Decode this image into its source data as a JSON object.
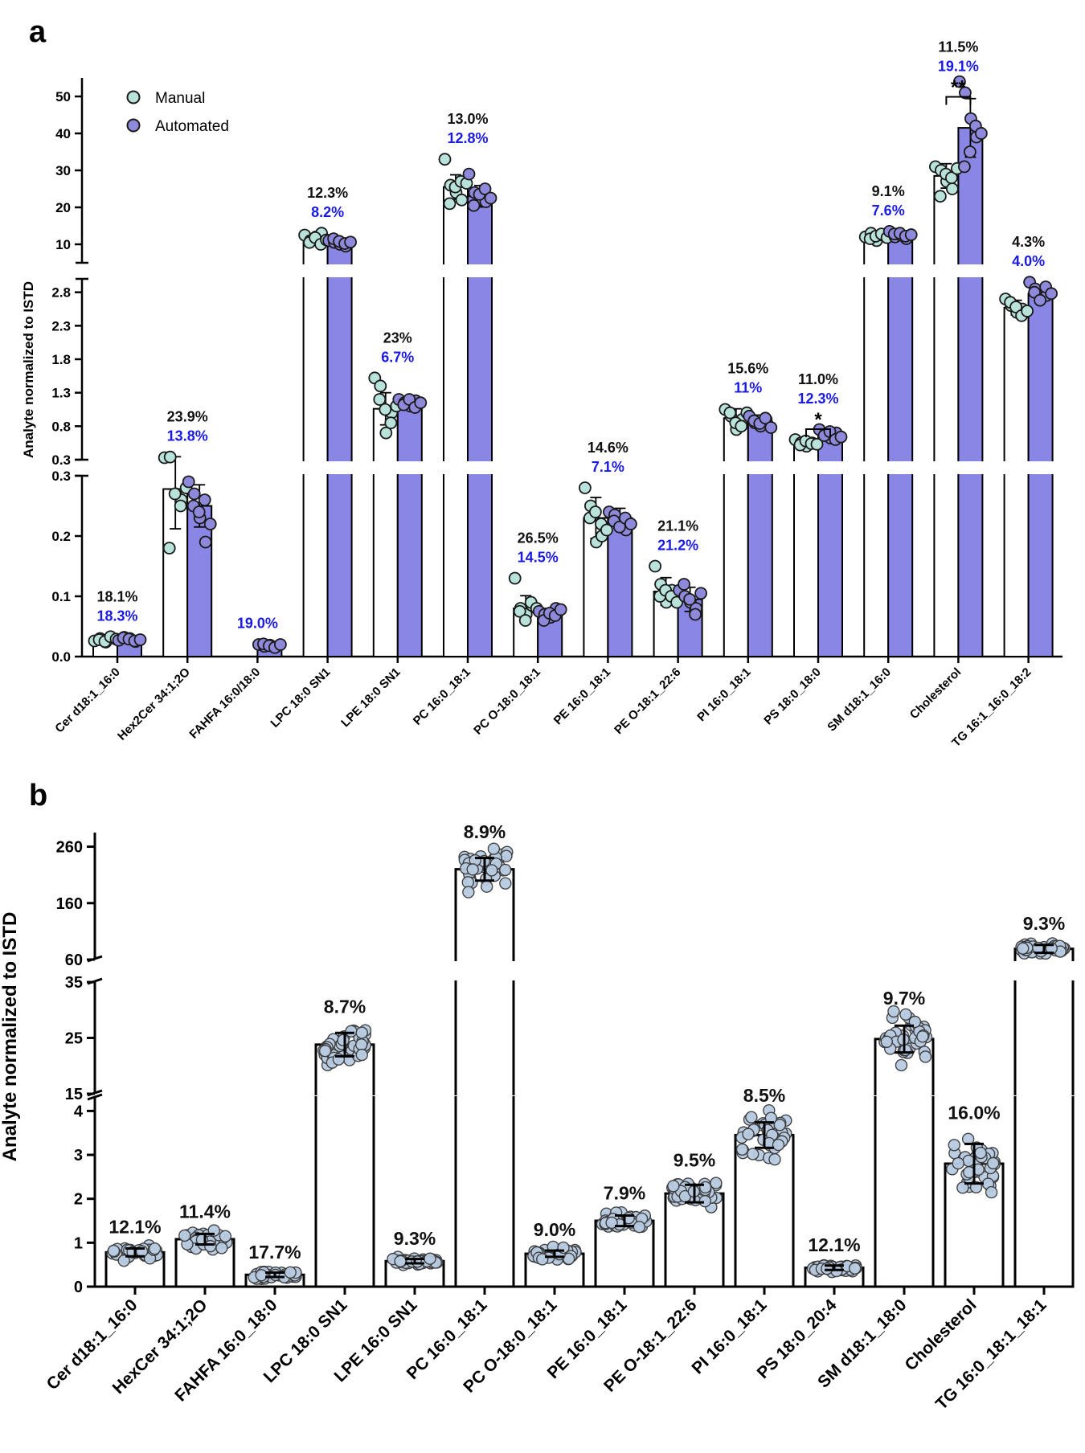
{
  "colors": {
    "manual_point": "#b9e3da",
    "automated_point": "#8f89dc",
    "automated_bar": "#8a86e6",
    "panel_b_point": "#b9cce2",
    "cv_manual": "#111111",
    "cv_automated": "#1a1ae6"
  },
  "chart_data": [
    {
      "panel": "a",
      "type": "bar",
      "ylabel": "Analyte normalized to ISTD",
      "legend": {
        "placement": "top-left",
        "entries": [
          "Manual",
          "Automated"
        ]
      },
      "categories": [
        "Cer d18:1_16:0",
        "Hex2Cer 34:1;2O",
        "FAHFA 16:0/18:0",
        "LPC 18:0 SN1",
        "LPE 18:0 SN1",
        "PC 16:0_18:1",
        "PC O-18:0_18:1",
        "PE 16:0_18:1",
        "PE O-18:1_22:6",
        "PI 16:0_18:1",
        "PS 18:0_18:0",
        "SM d18:1_16:0",
        "Cholesterol",
        "TG 16:1_16:0_18:2"
      ],
      "segments": [
        {
          "range": [
            0,
            0.3
          ],
          "ticks": [
            {
              "v": 0,
              "label": "0.0"
            },
            {
              "v": 0.1,
              "label": "0.1"
            },
            {
              "v": 0.2,
              "label": "0.2"
            },
            {
              "v": 0.3,
              "label": "0.3"
            }
          ]
        },
        {
          "range": [
            0.3,
            3.0
          ],
          "ticks": [
            {
              "v": 0.3,
              "label": "0.3"
            },
            {
              "v": 0.8,
              "label": "0.8"
            },
            {
              "v": 1.3,
              "label": "1.3"
            },
            {
              "v": 1.8,
              "label": "1.8"
            },
            {
              "v": 2.3,
              "label": "2.3"
            },
            {
              "v": 2.8,
              "label": "2.8"
            }
          ]
        },
        {
          "range": [
            5,
            55
          ],
          "ticks": [
            {
              "v": 10,
              "label": "10"
            },
            {
              "v": 20,
              "label": "20"
            },
            {
              "v": 30,
              "label": "30"
            },
            {
              "v": 40,
              "label": "40"
            },
            {
              "v": 50,
              "label": "50"
            }
          ]
        }
      ],
      "series": [
        {
          "name": "Manual",
          "values": [
            0.028,
            0.278,
            null,
            11.5,
            1.06,
            25.5,
            0.08,
            0.23,
            0.108,
            0.92,
            0.545,
            12.0,
            28.5,
            2.57
          ],
          "sd": [
            0.005,
            0.066,
            null,
            1.4,
            0.24,
            3.3,
            0.021,
            0.034,
            0.023,
            0.14,
            0.06,
            1.1,
            3.3,
            0.11
          ],
          "points": [
            [
              0.026,
              0.03,
              0.024,
              0.031,
              0.028,
              0.025,
              0.033,
              0.029
            ],
            [
              0.33,
              0.34,
              0.27,
              0.26,
              0.18,
              0.27,
              0.25,
              0.28
            ],
            [],
            [
              12.5,
              11.0,
              12.0,
              13.0,
              10.5,
              11.8,
              10.0,
              11.2
            ],
            [
              1.52,
              1.4,
              0.7,
              1.0,
              1.2,
              1.05,
              0.85,
              1.1
            ],
            [
              33.0,
              26.0,
              24.0,
              22.0,
              21.0,
              25.5,
              27.0,
              26.5
            ],
            [
              0.13,
              0.08,
              0.07,
              0.085,
              0.075,
              0.06,
              0.09,
              0.08
            ],
            [
              0.28,
              0.25,
              0.19,
              0.2,
              0.23,
              0.24,
              0.22,
              0.21
            ],
            [
              0.15,
              0.12,
              0.09,
              0.11,
              0.1,
              0.11,
              0.1,
              0.09
            ],
            [
              1.05,
              0.95,
              0.75,
              0.9,
              1.0,
              0.85,
              0.8,
              1.0
            ],
            [
              0.6,
              0.55,
              0.5,
              0.55,
              0.52,
              0.58,
              0.54,
              0.53
            ],
            [
              12.0,
              13.0,
              11.0,
              12.5,
              11.5,
              12.2,
              12.8,
              11.8
            ],
            [
              31.0,
              30.0,
              27.0,
              25.0,
              23.0,
              29.0,
              28.0,
              30.5
            ],
            [
              2.7,
              2.6,
              2.5,
              2.55,
              2.65,
              2.58,
              2.45,
              2.52
            ]
          ]
        },
        {
          "name": "Automated",
          "values": [
            0.028,
            0.25,
            0.018,
            10.5,
            1.15,
            23.0,
            0.07,
            0.23,
            0.095,
            0.87,
            0.655,
            12.5,
            41.5,
            2.78
          ],
          "sd": [
            0.005,
            0.035,
            0.003,
            0.86,
            0.077,
            2.9,
            0.01,
            0.016,
            0.02,
            0.096,
            0.08,
            0.95,
            7.9,
            0.11
          ],
          "points": [
            [
              0.027,
              0.032,
              0.03,
              0.025,
              0.031,
              0.029,
              0.026,
              0.028
            ],
            [
              0.29,
              0.27,
              0.23,
              0.19,
              0.25,
              0.24,
              0.26,
              0.22
            ],
            [
              0.02,
              0.017,
              0.019,
              0.016,
              0.021,
              0.018,
              0.015,
              0.02
            ],
            [
              11.0,
              10.5,
              10.0,
              9.5,
              11.5,
              10.8,
              10.2,
              10.6
            ],
            [
              1.2,
              1.15,
              1.1,
              1.18,
              1.12,
              1.2,
              1.08,
              1.15
            ],
            [
              29.0,
              24.0,
              22.0,
              21.5,
              20.5,
              23.5,
              25.0,
              22.5
            ],
            [
              0.075,
              0.07,
              0.065,
              0.08,
              0.06,
              0.072,
              0.068,
              0.078
            ],
            [
              0.24,
              0.235,
              0.22,
              0.21,
              0.225,
              0.215,
              0.23,
              0.22
            ],
            [
              0.11,
              0.1,
              0.09,
              0.08,
              0.12,
              0.095,
              0.07,
              0.105
            ],
            [
              0.95,
              0.85,
              0.8,
              0.9,
              0.88,
              0.84,
              0.92,
              0.78
            ],
            [
              0.75,
              0.68,
              0.62,
              0.7,
              0.66,
              0.72,
              0.6,
              0.64
            ],
            [
              13.5,
              12.0,
              12.5,
              11.5,
              12.8,
              13.0,
              12.2,
              12.6
            ],
            [
              54.0,
              51.0,
              44.0,
              39.0,
              31.0,
              35.0,
              42.0,
              40.0
            ],
            [
              2.95,
              2.85,
              2.7,
              2.75,
              2.8,
              2.68,
              2.88,
              2.78
            ]
          ]
        }
      ],
      "cv_labels": [
        {
          "manual": "18.1%",
          "automated": "18.3%"
        },
        {
          "manual": "23.9%",
          "automated": "13.8%"
        },
        {
          "manual": "",
          "automated": "19.0%"
        },
        {
          "manual": "12.3%",
          "automated": "8.2%"
        },
        {
          "manual": "23%",
          "automated": "6.7%"
        },
        {
          "manual": "13.0%",
          "automated": "12.8%"
        },
        {
          "manual": "26.5%",
          "automated": "14.5%"
        },
        {
          "manual": "14.6%",
          "automated": "7.1%"
        },
        {
          "manual": "21.1%",
          "automated": "21.2%"
        },
        {
          "manual": "15.6%",
          "automated": "11%"
        },
        {
          "manual": "11.0%",
          "automated": "12.3%"
        },
        {
          "manual": "9.1%",
          "automated": "7.6%"
        },
        {
          "manual": "11.5%",
          "automated": "19.1%"
        },
        {
          "manual": "4.3%",
          "automated": "4.0%"
        }
      ],
      "significance": [
        {
          "category": "PS 18:0_18:0",
          "label": "*",
          "y": 0.9
        },
        {
          "category": "Cholesterol",
          "label": "**",
          "y": 52.5
        }
      ]
    },
    {
      "panel": "b",
      "type": "bar",
      "ylabel": "Analyte normalized to ISTD",
      "categories": [
        "Cer d18:1_16:0",
        "HexCer 34:1;2O",
        "FAHFA 16:0_18:0",
        "LPC 18:0 SN1",
        "LPE 16:0 SN1",
        "PC 16:0_18:1",
        "PC O-18:0_18:1",
        "PE 16:0_18:1",
        "PE O-18:1_22:6",
        "PI 16:0_18:1",
        "PS 18:0_20:4",
        "SM d18:1_18:0",
        "Cholesterol",
        "TG 16:0_18:1_18:1"
      ],
      "segments": [
        {
          "range": [
            0,
            4.3
          ],
          "ticks": [
            {
              "v": 0,
              "label": "0"
            },
            {
              "v": 1,
              "label": "1"
            },
            {
              "v": 2,
              "label": "2"
            },
            {
              "v": 3,
              "label": "3"
            },
            {
              "v": 4,
              "label": "4"
            }
          ]
        },
        {
          "range": [
            15,
            35
          ],
          "ticks": [
            {
              "v": 15,
              "label": "15"
            },
            {
              "v": 25,
              "label": "25"
            },
            {
              "v": 35,
              "label": "35"
            }
          ]
        },
        {
          "range": [
            60,
            285
          ],
          "ticks": [
            {
              "v": 60,
              "label": "60"
            },
            {
              "v": 160,
              "label": "160"
            },
            {
              "v": 260,
              "label": "260"
            }
          ]
        }
      ],
      "values": [
        0.78,
        1.08,
        0.27,
        23.8,
        0.58,
        220,
        0.75,
        1.5,
        2.12,
        3.45,
        0.43,
        24.8,
        2.8,
        79
      ],
      "sd": [
        0.09,
        0.12,
        0.05,
        2.1,
        0.05,
        20,
        0.07,
        0.12,
        0.2,
        0.29,
        0.05,
        2.4,
        0.45,
        7
      ],
      "cv_labels": [
        "12.1%",
        "11.4%",
        "17.7%",
        "8.7%",
        "9.3%",
        "8.9%",
        "9.0%",
        "7.9%",
        "9.5%",
        "8.5%",
        "12.1%",
        "9.7%",
        "16.0%",
        "9.3%"
      ],
      "points_per_group": 40
    }
  ]
}
